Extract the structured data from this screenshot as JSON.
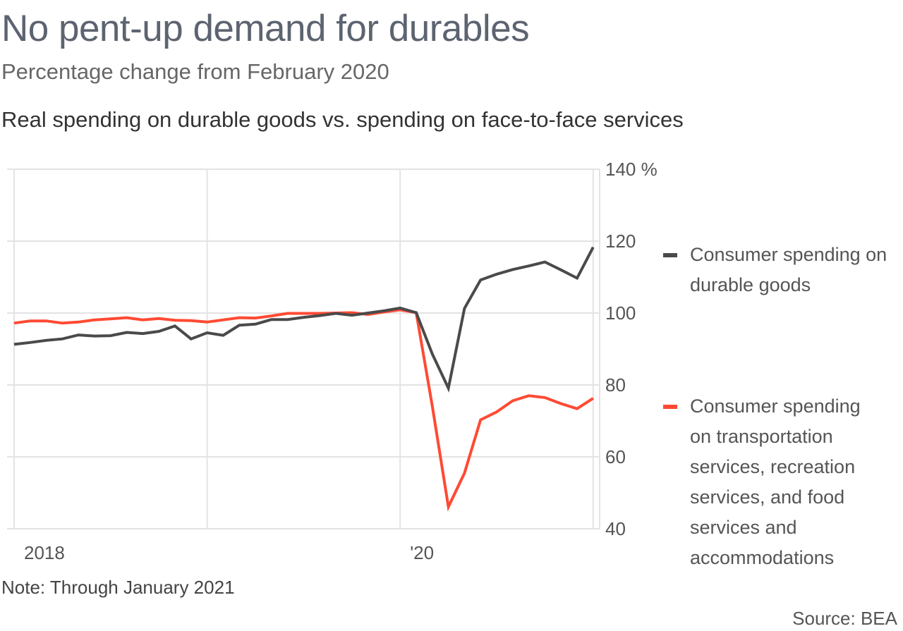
{
  "title": "No pent-up demand for durables",
  "subtitle": "Percentage change from February 2020",
  "chart_subtitle": "Real spending on durable goods vs. spending on face-to-face services",
  "note": "Note: Through January 2021",
  "source": "Source: BEA",
  "chart_data": {
    "type": "line",
    "x_start": "2018-01",
    "x_end": "2021-01",
    "frequency": "monthly",
    "x_ticks": [
      {
        "date": "2018-01",
        "label": "2018"
      },
      {
        "date": "2020-01",
        "label": "'20"
      }
    ],
    "y_ticks": [
      {
        "value": 140,
        "label": "140 %"
      },
      {
        "value": 120,
        "label": "120"
      },
      {
        "value": 100,
        "label": "100"
      },
      {
        "value": 80,
        "label": "80"
      },
      {
        "value": 60,
        "label": "60"
      },
      {
        "value": 40,
        "label": "40"
      }
    ],
    "ylim": [
      40,
      140
    ],
    "y_axis_position": "right",
    "grid": true,
    "legend_placement": "right",
    "series": [
      {
        "name": "Consumer spending on durable goods",
        "color": "#4a4a4a",
        "values": [
          91.3,
          91.8,
          92.4,
          92.8,
          93.9,
          93.6,
          93.7,
          94.6,
          94.3,
          94.9,
          96.4,
          92.8,
          94.5,
          93.8,
          96.6,
          96.9,
          98.2,
          98.2,
          98.8,
          99.3,
          99.9,
          99.4,
          100.0,
          100.6,
          101.4,
          100.1,
          88.6,
          79.1,
          101.3,
          109.2,
          110.8,
          112.1,
          113.1,
          114.2,
          112.0,
          109.7,
          118.3
        ]
      },
      {
        "name": "Consumer spending on transportation services, recreation services, and food services and accommodations",
        "color": "#ff4a33",
        "values": [
          97.2,
          97.8,
          97.8,
          97.2,
          97.5,
          98.1,
          98.4,
          98.7,
          98.1,
          98.5,
          98.0,
          97.9,
          97.5,
          98.1,
          98.7,
          98.6,
          99.2,
          99.9,
          99.9,
          99.9,
          100.0,
          100.1,
          99.6,
          100.3,
          100.9,
          100.1,
          74.1,
          46.1,
          55.5,
          70.3,
          72.5,
          75.6,
          77.0,
          76.5,
          74.8,
          73.4,
          76.3
        ]
      }
    ]
  }
}
